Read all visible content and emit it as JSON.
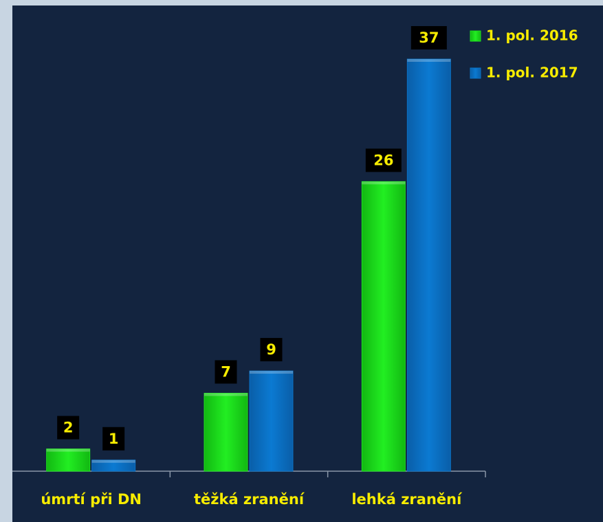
{
  "chart_data": {
    "type": "bar",
    "categories": [
      "úmrtí při DN",
      "těžká zranění",
      "lehká zranění"
    ],
    "series": [
      {
        "name": "1. pol. 2016",
        "color": "#1fe21f",
        "values": [
          2,
          7,
          26
        ]
      },
      {
        "name": "1. pol. 2017",
        "color": "#0a72c6",
        "values": [
          1,
          9,
          37
        ]
      }
    ],
    "legend": "top-right"
  }
}
